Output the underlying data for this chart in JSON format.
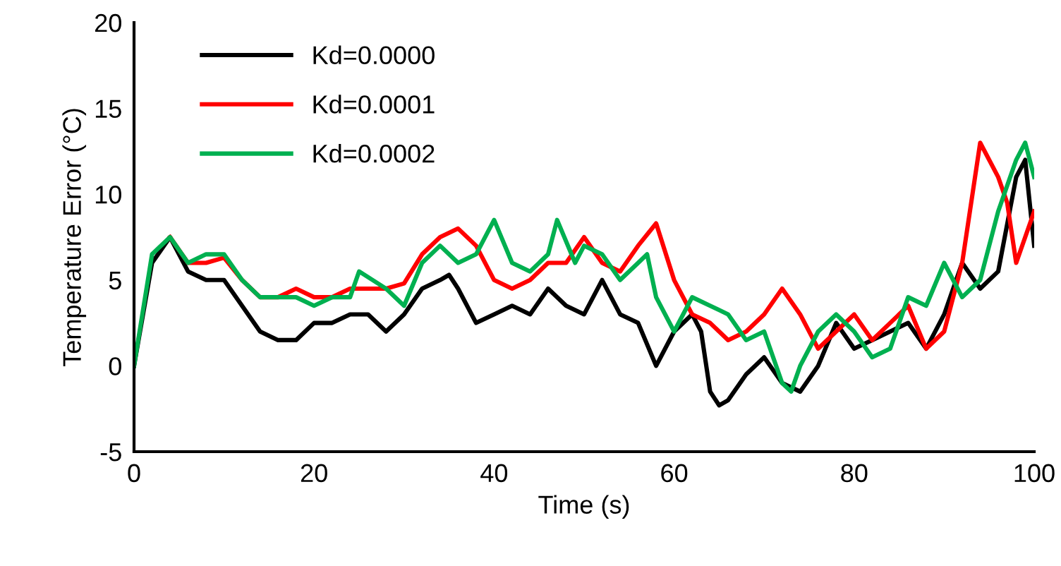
{
  "chart_data": {
    "type": "line",
    "xlabel": "Time (s)",
    "ylabel": "Temperature Error (°C)",
    "xlim": [
      0,
      100
    ],
    "xticks": [
      0,
      20,
      40,
      60,
      80,
      100
    ],
    "ylim": [
      -5,
      20
    ],
    "yticks": [
      -5,
      0,
      5,
      10,
      15,
      20
    ],
    "grid": false,
    "legend": "top left",
    "marker": "none",
    "line_style": "solid",
    "series": [
      {
        "name": "Kd=0.0000",
        "color": "#000000",
        "x": [
          0,
          2,
          4,
          5,
          6,
          8,
          10,
          12,
          14,
          16,
          18,
          20,
          22,
          24,
          26,
          28,
          30,
          32,
          34,
          35,
          36,
          38,
          40,
          42,
          44,
          46,
          48,
          50,
          52,
          54,
          56,
          58,
          60,
          62,
          63,
          64,
          65,
          66,
          68,
          70,
          72,
          74,
          76,
          78,
          80,
          82,
          84,
          86,
          88,
          90,
          92,
          94,
          96,
          98,
          99,
          100
        ],
        "values": [
          0,
          6,
          7.5,
          6.5,
          5.5,
          5,
          5,
          3.5,
          2,
          1.5,
          1.5,
          2.5,
          2.5,
          3,
          3,
          2,
          3,
          4.5,
          5,
          5.3,
          4.5,
          2.5,
          3,
          3.5,
          3,
          4.5,
          3.5,
          3,
          5,
          3,
          2.5,
          0,
          2,
          3,
          2,
          -1.5,
          -2.3,
          -2,
          -0.5,
          0.5,
          -1,
          -1.5,
          0,
          2.5,
          1,
          1.5,
          2,
          2.5,
          1,
          3,
          6,
          4.5,
          5.5,
          11,
          12,
          7
        ]
      },
      {
        "name": "Kd=0.0001",
        "color": "#ff0000",
        "x": [
          4,
          6,
          8,
          10,
          12,
          14,
          16,
          18,
          20,
          22,
          24,
          26,
          28,
          30,
          32,
          34,
          36,
          38,
          40,
          42,
          44,
          46,
          48,
          50,
          52,
          54,
          56,
          58,
          60,
          62,
          64,
          66,
          68,
          70,
          72,
          74,
          76,
          78,
          80,
          82,
          84,
          86,
          88,
          90,
          92,
          94,
          96,
          97,
          98,
          100
        ],
        "values": [
          7.5,
          6,
          6,
          6.3,
          5,
          4,
          4,
          4.5,
          4,
          4,
          4.5,
          4.5,
          4.5,
          4.8,
          6.5,
          7.5,
          8,
          7,
          5,
          4.5,
          5,
          6,
          6,
          7.5,
          6,
          5.5,
          7,
          8.3,
          5,
          3,
          2.5,
          1.5,
          2,
          3,
          4.5,
          3,
          1,
          2,
          3,
          1.5,
          2.5,
          3.5,
          1,
          2,
          6,
          13,
          11,
          9.5,
          6,
          9
        ]
      },
      {
        "name": "Kd=0.0002",
        "color": "#00b050",
        "x": [
          0,
          2,
          4,
          6,
          8,
          10,
          12,
          14,
          16,
          18,
          20,
          22,
          24,
          25,
          28,
          30,
          32,
          34,
          36,
          38,
          40,
          42,
          44,
          46,
          47,
          49,
          50,
          52,
          54,
          56,
          57,
          58,
          60,
          62,
          64,
          66,
          68,
          70,
          72,
          73,
          74,
          76,
          78,
          80,
          82,
          84,
          86,
          88,
          90,
          92,
          94,
          96,
          98,
          99,
          100
        ],
        "values": [
          0,
          6.5,
          7.5,
          6,
          6.5,
          6.5,
          5,
          4,
          4,
          4,
          3.5,
          4,
          4,
          5.5,
          4.5,
          3.5,
          6,
          7,
          6,
          6.5,
          8.5,
          6,
          5.5,
          6.5,
          8.5,
          6,
          7,
          6.5,
          5,
          6,
          6.5,
          4,
          2,
          4,
          3.5,
          3,
          1.5,
          2,
          -1,
          -1.5,
          0,
          2,
          3,
          2,
          0.5,
          1,
          4,
          3.5,
          6,
          4,
          5,
          9,
          12,
          13,
          11
        ]
      }
    ]
  }
}
